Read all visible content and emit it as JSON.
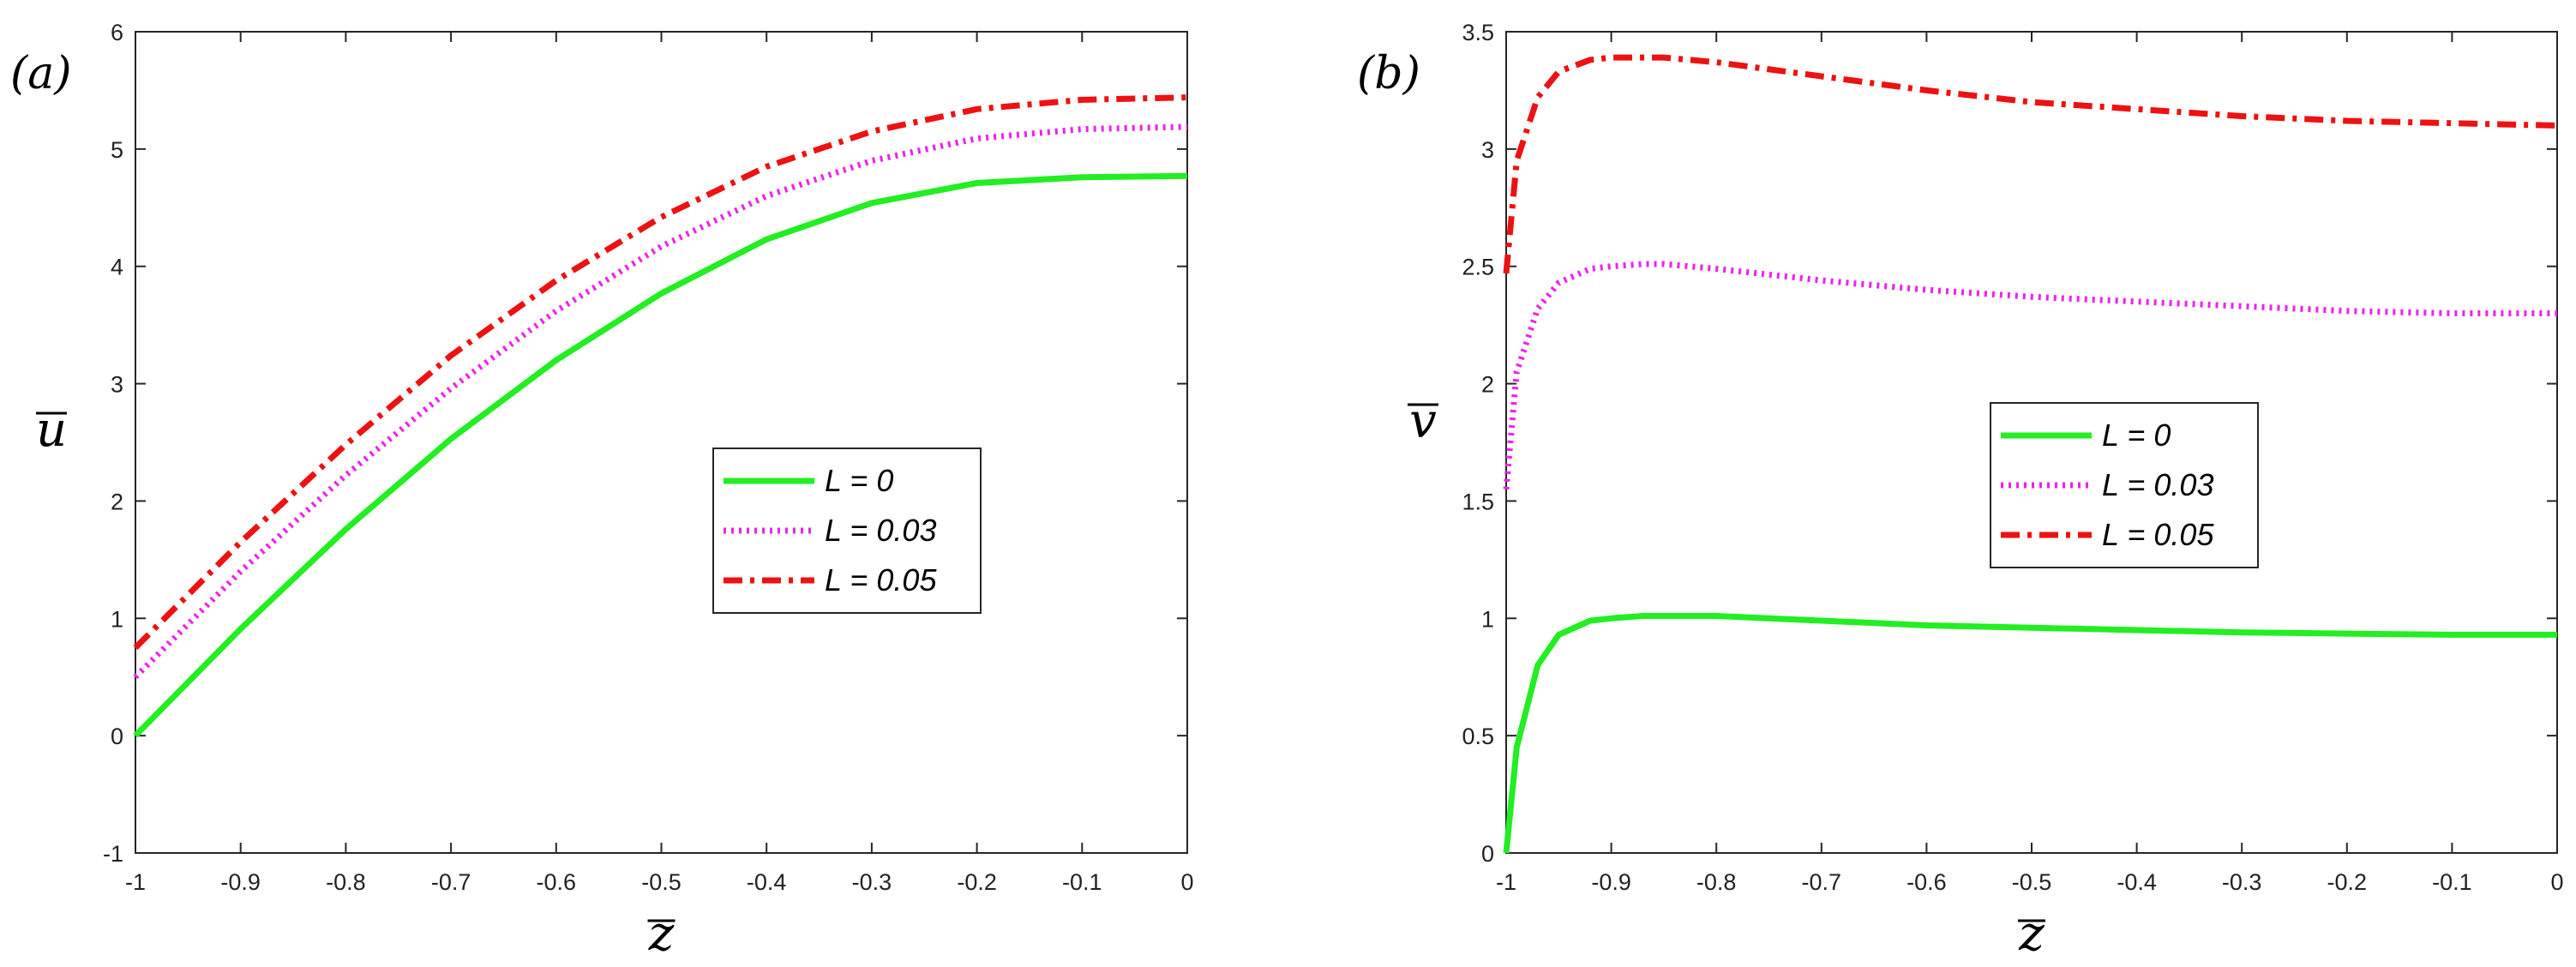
{
  "chart_data": [
    {
      "type": "line",
      "panel_label": "(a)",
      "xlabel": "z",
      "ylabel": "u",
      "xlim": [
        -1,
        0
      ],
      "ylim": [
        -1,
        6
      ],
      "xticks": [
        -1,
        -0.9,
        -0.8,
        -0.7,
        -0.6,
        -0.5,
        -0.4,
        -0.3,
        -0.2,
        -0.1,
        0
      ],
      "xtick_labels": [
        "-1",
        "-0.9",
        "-0.8",
        "-0.7",
        "-0.6",
        "-0.5",
        "-0.4",
        "-0.3",
        "-0.2",
        "-0.1",
        "0"
      ],
      "yticks": [
        -1,
        0,
        1,
        2,
        3,
        4,
        5,
        6
      ],
      "ytick_labels": [
        "-1",
        "0",
        "1",
        "2",
        "3",
        "4",
        "5",
        "6"
      ],
      "legend_position": "center-right",
      "x": [
        -1,
        -0.9,
        -0.8,
        -0.7,
        -0.6,
        -0.5,
        -0.4,
        -0.3,
        -0.2,
        -0.1,
        0
      ],
      "series": [
        {
          "name": "L = 0",
          "color": "#22ee22",
          "style": "solid",
          "values": [
            0,
            0.91,
            1.76,
            2.53,
            3.2,
            3.77,
            4.23,
            4.54,
            4.71,
            4.76,
            4.77
          ]
        },
        {
          "name": "L = 0.03",
          "color": "#ee22ee",
          "style": "dotted",
          "values": [
            0.5,
            1.4,
            2.22,
            2.96,
            3.62,
            4.17,
            4.6,
            4.9,
            5.09,
            5.17,
            5.19
          ]
        },
        {
          "name": "L = 0.05",
          "color": "#ee1111",
          "style": "dashdot",
          "values": [
            0.75,
            1.65,
            2.48,
            3.24,
            3.88,
            4.42,
            4.85,
            5.15,
            5.34,
            5.42,
            5.44
          ]
        }
      ]
    },
    {
      "type": "line",
      "panel_label": "(b)",
      "xlabel": "z",
      "ylabel": "v",
      "xlim": [
        -1,
        0
      ],
      "ylim": [
        0,
        3.5
      ],
      "xticks": [
        -1,
        -0.9,
        -0.8,
        -0.7,
        -0.6,
        -0.5,
        -0.4,
        -0.3,
        -0.2,
        -0.1,
        0
      ],
      "xtick_labels": [
        "-1",
        "-0.9",
        "-0.8",
        "-0.7",
        "-0.6",
        "-0.5",
        "-0.4",
        "-0.3",
        "-0.2",
        "-0.1",
        "0"
      ],
      "yticks": [
        0,
        0.5,
        1,
        1.5,
        2,
        2.5,
        3,
        3.5
      ],
      "ytick_labels": [
        "0",
        "0.5",
        "1",
        "1.5",
        "2",
        "2.5",
        "3",
        "3.5"
      ],
      "legend_position": "center",
      "x": [
        -1,
        -0.99,
        -0.97,
        -0.95,
        -0.92,
        -0.9,
        -0.87,
        -0.85,
        -0.8,
        -0.7,
        -0.6,
        -0.5,
        -0.4,
        -0.3,
        -0.2,
        -0.1,
        0
      ],
      "series": [
        {
          "name": "L = 0",
          "color": "#22ee22",
          "style": "solid",
          "values": [
            0,
            0.45,
            0.8,
            0.93,
            0.99,
            1.0,
            1.01,
            1.01,
            1.01,
            0.99,
            0.97,
            0.96,
            0.95,
            0.94,
            0.935,
            0.93,
            0.93
          ]
        },
        {
          "name": "L = 0.03",
          "color": "#ee22ee",
          "style": "dotted",
          "values": [
            1.55,
            2.05,
            2.32,
            2.43,
            2.49,
            2.5,
            2.51,
            2.51,
            2.49,
            2.44,
            2.4,
            2.37,
            2.35,
            2.33,
            2.31,
            2.3,
            2.3
          ]
        },
        {
          "name": "L = 0.05",
          "color": "#ee1111",
          "style": "dashdot",
          "values": [
            2.47,
            2.95,
            3.22,
            3.33,
            3.38,
            3.39,
            3.39,
            3.39,
            3.37,
            3.31,
            3.25,
            3.2,
            3.17,
            3.14,
            3.12,
            3.11,
            3.1
          ]
        }
      ]
    }
  ]
}
